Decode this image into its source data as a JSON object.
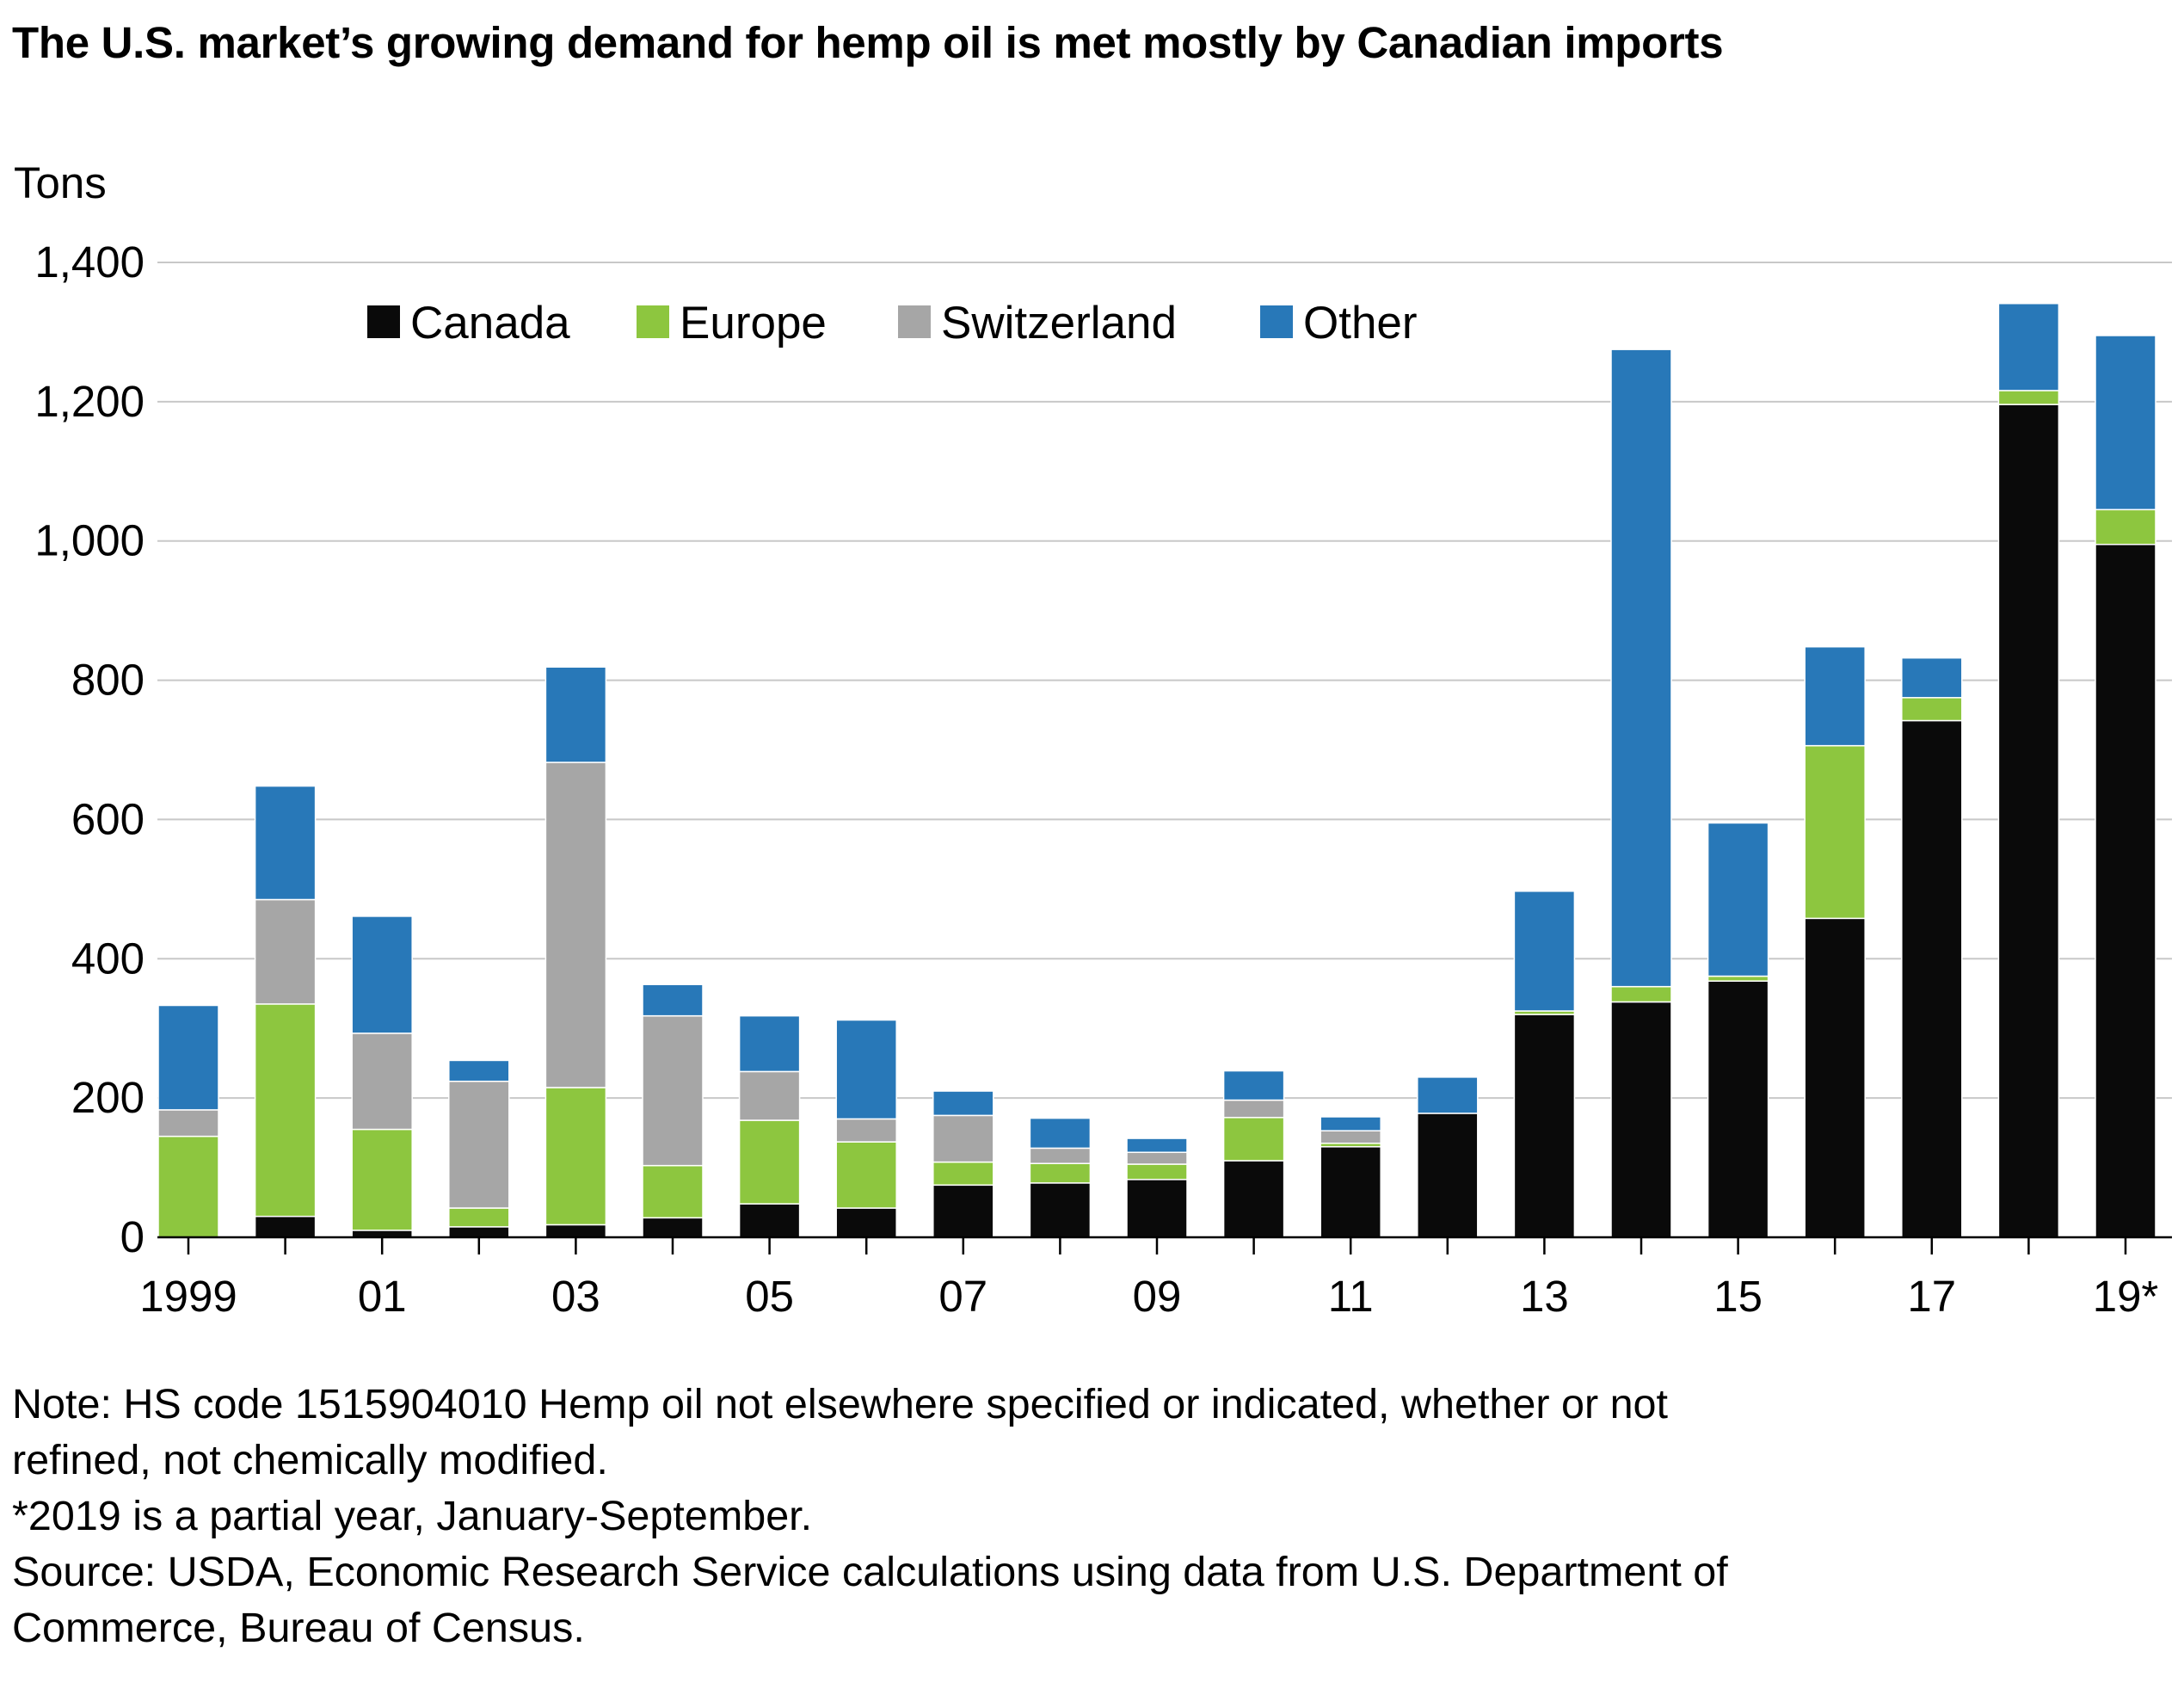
{
  "title": "The U.S. market’s growing demand for hemp oil is met mostly by Canadian imports",
  "notes": [
    "Note: HS code 1515904010 Hemp oil not elsewhere specified or indicated, whether or not",
    "refined, not chemically modified.",
    "*2019 is a partial year, January-September.",
    "Source: USDA, Economic Research Service calculations using data from U.S. Department of",
    "Commerce, Bureau of Census."
  ],
  "colors": {
    "Canada": "#0a0a0a",
    "Europe": "#8dc63f",
    "Switzerland": "#a6a6a6",
    "Other": "#2878b8",
    "grid": "#c8c8c8"
  },
  "chart_data": {
    "type": "bar",
    "stacked": true,
    "ylabel": "Tons",
    "ylim": [
      0,
      1400
    ],
    "yticks": [
      0,
      200,
      400,
      600,
      800,
      1000,
      1200,
      1400
    ],
    "ytick_labels": [
      "0",
      "200",
      "400",
      "600",
      "800",
      "1,000",
      "1,200",
      "1,400"
    ],
    "legend_position": "top",
    "grid": true,
    "categories": [
      "1999",
      "2000",
      "01",
      "2002",
      "03",
      "2004",
      "05",
      "2006",
      "07",
      "2008",
      "09",
      "2010",
      "11",
      "2012",
      "13",
      "2014",
      "15",
      "2016",
      "17",
      "2018",
      "19*"
    ],
    "xtick_labels": [
      "1999",
      "",
      "01",
      "",
      "03",
      "",
      "05",
      "",
      "07",
      "",
      "09",
      "",
      "11",
      "",
      "13",
      "",
      "15",
      "",
      "17",
      "",
      "19*"
    ],
    "series": [
      {
        "name": "Canada",
        "values": [
          0,
          30,
          10,
          15,
          18,
          28,
          48,
          42,
          75,
          78,
          83,
          110,
          130,
          178,
          320,
          338,
          368,
          458,
          742,
          1196,
          995
        ]
      },
      {
        "name": "Europe",
        "values": [
          145,
          305,
          145,
          27,
          197,
          75,
          120,
          95,
          33,
          28,
          22,
          62,
          5,
          0,
          5,
          22,
          7,
          248,
          33,
          20,
          50
        ]
      },
      {
        "name": "Switzerland",
        "values": [
          38,
          150,
          138,
          182,
          467,
          215,
          70,
          33,
          67,
          22,
          17,
          25,
          18,
          0,
          0,
          0,
          0,
          0,
          0,
          0,
          0
        ]
      },
      {
        "name": "Other",
        "values": [
          150,
          163,
          168,
          30,
          137,
          45,
          80,
          142,
          35,
          43,
          20,
          42,
          20,
          52,
          172,
          915,
          220,
          142,
          57,
          125,
          250
        ]
      }
    ]
  }
}
